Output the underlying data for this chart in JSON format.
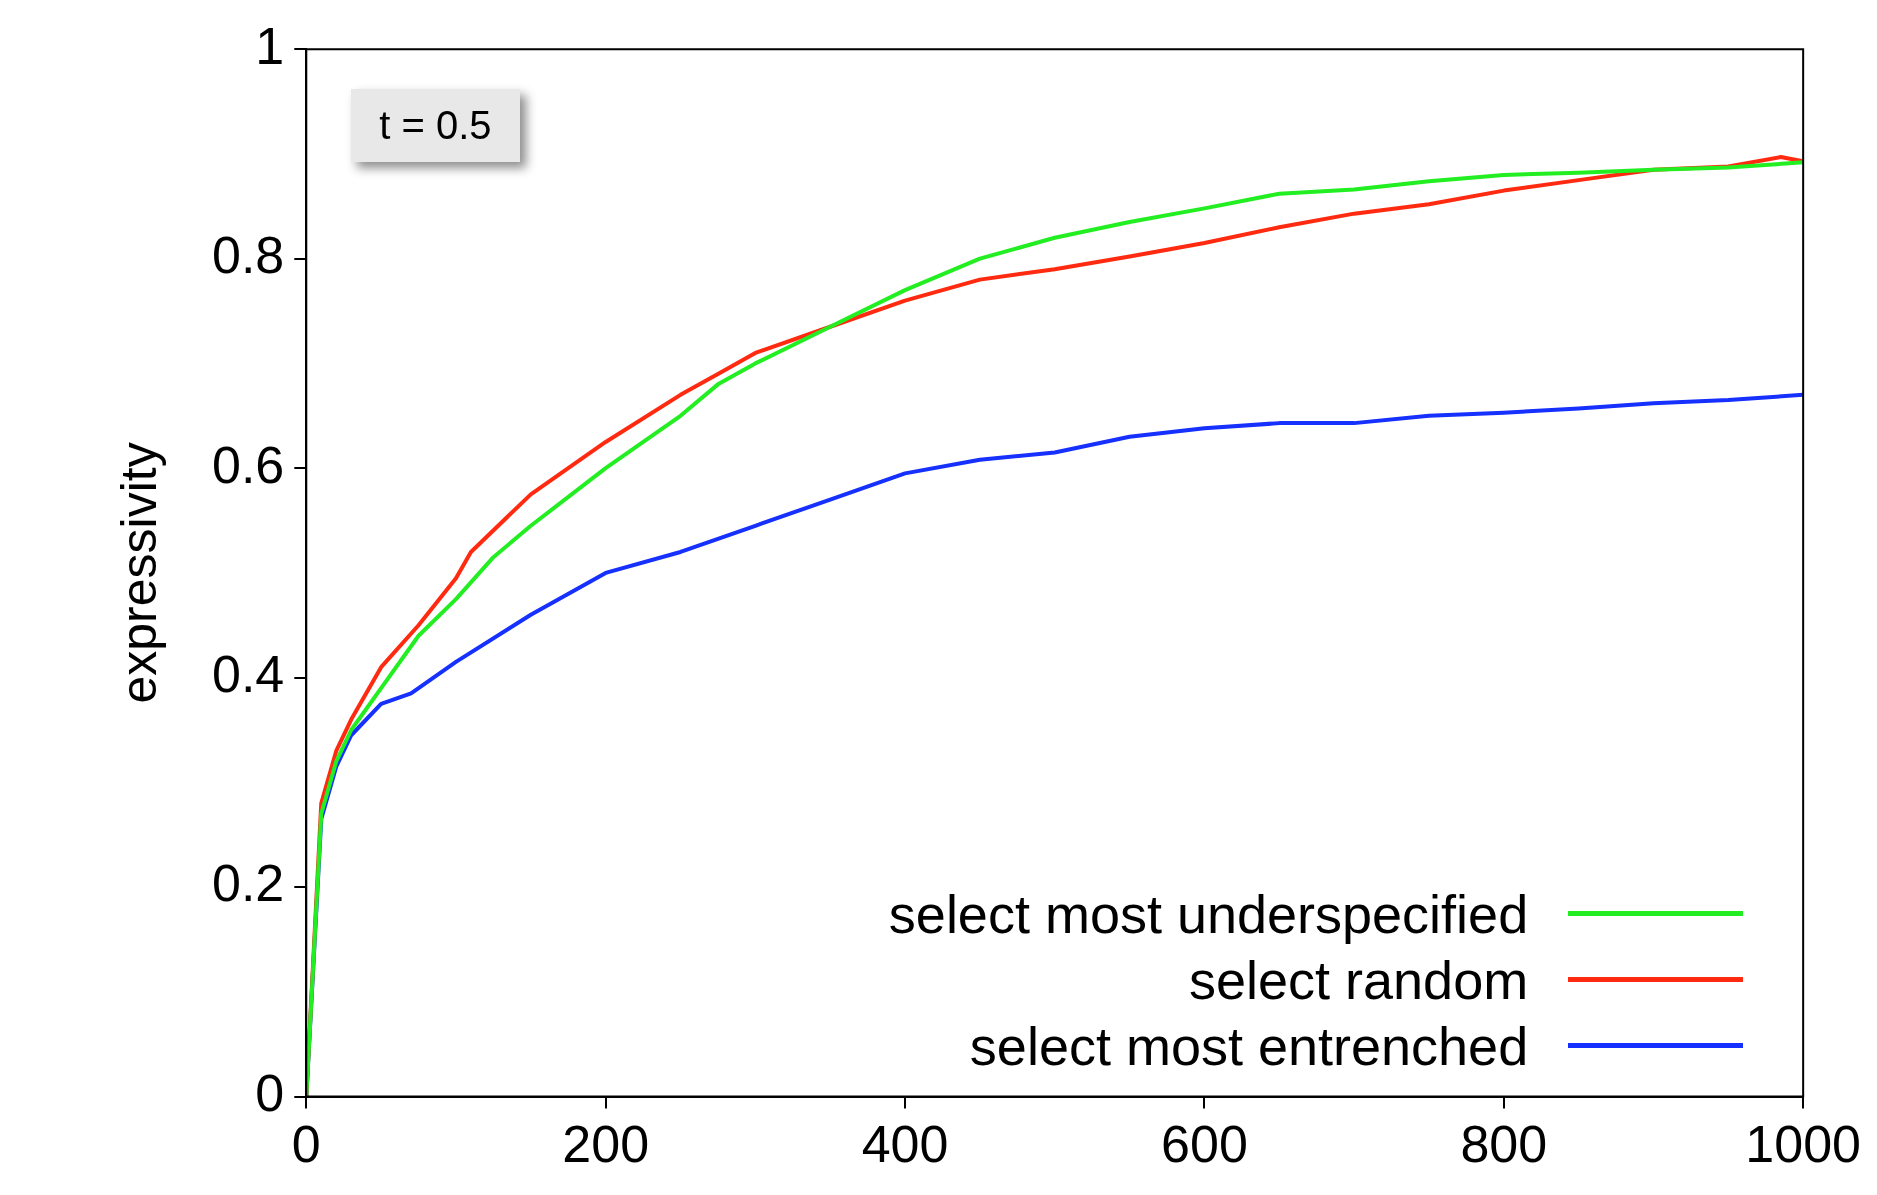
{
  "chart_data": {
    "type": "line",
    "ylabel": "expressivity",
    "annotations": [
      "t = 0.5"
    ],
    "xlim": [
      0,
      1000
    ],
    "xticks": [
      0,
      200,
      400,
      600,
      800,
      1000
    ],
    "ylim": [
      0,
      1
    ],
    "yticks": [
      0,
      0.2,
      0.4,
      0.6,
      0.8,
      1
    ],
    "legend": "bottom right",
    "grid": false,
    "marker": "none",
    "line_style": "solid",
    "series": [
      {
        "name": "select most underspecified",
        "color": "#22ee22",
        "x": [
          0,
          10,
          20,
          30,
          50,
          75,
          100,
          125,
          150,
          200,
          250,
          275,
          300,
          350,
          400,
          450,
          500,
          550,
          600,
          650,
          700,
          750,
          800,
          850,
          900,
          950,
          1000
        ],
        "values": [
          0,
          0.27,
          0.32,
          0.35,
          0.39,
          0.44,
          0.475,
          0.515,
          0.545,
          0.6,
          0.65,
          0.68,
          0.7,
          0.735,
          0.77,
          0.8,
          0.82,
          0.835,
          0.848,
          0.862,
          0.866,
          0.874,
          0.88,
          0.882,
          0.885,
          0.887,
          0.892
        ]
      },
      {
        "name": "select random",
        "color": "#ff2a10",
        "x": [
          0,
          10,
          20,
          30,
          50,
          75,
          100,
          110,
          150,
          200,
          250,
          275,
          300,
          350,
          400,
          450,
          500,
          550,
          600,
          650,
          700,
          750,
          800,
          850,
          900,
          950,
          985,
          1000
        ],
        "values": [
          0,
          0.28,
          0.33,
          0.36,
          0.41,
          0.45,
          0.495,
          0.52,
          0.575,
          0.625,
          0.67,
          0.69,
          0.71,
          0.735,
          0.76,
          0.78,
          0.79,
          0.802,
          0.815,
          0.83,
          0.843,
          0.852,
          0.865,
          0.875,
          0.885,
          0.888,
          0.897,
          0.893
        ]
      },
      {
        "name": "select most entrenched",
        "color": "#1530ff",
        "x": [
          0,
          10,
          20,
          30,
          50,
          70,
          100,
          150,
          200,
          250,
          300,
          350,
          400,
          450,
          500,
          550,
          600,
          650,
          700,
          750,
          800,
          850,
          900,
          950,
          1000
        ],
        "values": [
          0,
          0.265,
          0.315,
          0.345,
          0.375,
          0.385,
          0.415,
          0.46,
          0.5,
          0.52,
          0.545,
          0.57,
          0.595,
          0.608,
          0.615,
          0.63,
          0.638,
          0.643,
          0.643,
          0.65,
          0.653,
          0.657,
          0.662,
          0.665,
          0.67
        ]
      }
    ]
  }
}
